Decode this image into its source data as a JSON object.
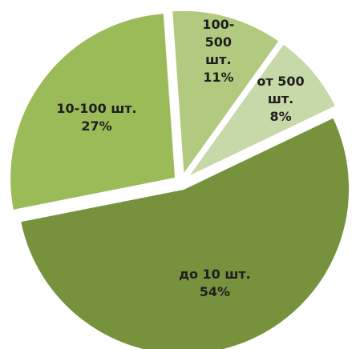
{
  "chart_data": {
    "type": "pie",
    "categories": [
      "100-500 шт.",
      "от 500 шт.",
      "до 10 шт.",
      "10-100 шт."
    ],
    "values": [
      11,
      8,
      54,
      27
    ],
    "value_labels": [
      "11%",
      "8%",
      "54%",
      "27%"
    ],
    "colors": [
      "#b2ca80",
      "#c7d9a8",
      "#76923c",
      "#9bbb59"
    ]
  }
}
